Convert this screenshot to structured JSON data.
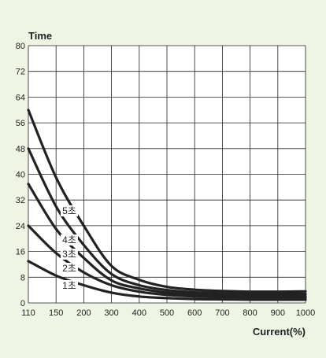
{
  "colors": {
    "background": "#eef5e4",
    "plot_background": "#ffffff",
    "ink": "#222222"
  },
  "chart_data": {
    "type": "line",
    "title": "",
    "xlabel": "Current(%)",
    "ylabel": "Time",
    "grid": true,
    "x_categories": [
      "110",
      "150",
      "200",
      "300",
      "400",
      "500",
      "600",
      "700",
      "800",
      "900",
      "1000"
    ],
    "y_ticks": [
      0,
      8,
      16,
      24,
      32,
      40,
      48,
      56,
      64,
      72,
      80
    ],
    "ylim": [
      0,
      80
    ],
    "series": [
      {
        "name": "1초",
        "points": [
          [
            110,
            13
          ],
          [
            150,
            8.5
          ],
          [
            200,
            5.5
          ],
          [
            300,
            3.2
          ],
          [
            400,
            2
          ],
          [
            500,
            1.5
          ],
          [
            600,
            1.2
          ],
          [
            700,
            1.1
          ],
          [
            800,
            1.0
          ],
          [
            900,
            1.0
          ],
          [
            1000,
            1.0
          ]
        ]
      },
      {
        "name": "2초",
        "points": [
          [
            110,
            24
          ],
          [
            150,
            15.5
          ],
          [
            200,
            9.5
          ],
          [
            300,
            5.5
          ],
          [
            400,
            3.5
          ],
          [
            500,
            2.5
          ],
          [
            600,
            2
          ],
          [
            700,
            1.8
          ],
          [
            800,
            1.6
          ],
          [
            900,
            1.6
          ],
          [
            1000,
            1.6
          ]
        ]
      },
      {
        "name": "3초",
        "points": [
          [
            110,
            37
          ],
          [
            150,
            23
          ],
          [
            200,
            14
          ],
          [
            300,
            7
          ],
          [
            400,
            4.5
          ],
          [
            500,
            3.2
          ],
          [
            600,
            2.6
          ],
          [
            700,
            2.3
          ],
          [
            800,
            2.1
          ],
          [
            900,
            2.1
          ],
          [
            1000,
            2.1
          ]
        ]
      },
      {
        "name": "4초",
        "points": [
          [
            110,
            48
          ],
          [
            150,
            30
          ],
          [
            200,
            18
          ],
          [
            300,
            9
          ],
          [
            400,
            5.5
          ],
          [
            500,
            4
          ],
          [
            600,
            3.3
          ],
          [
            700,
            3.0
          ],
          [
            800,
            2.8
          ],
          [
            900,
            2.8
          ],
          [
            1000,
            2.8
          ]
        ]
      },
      {
        "name": "5초",
        "points": [
          [
            110,
            60
          ],
          [
            150,
            39
          ],
          [
            200,
            24
          ],
          [
            300,
            11.5
          ],
          [
            400,
            7.2
          ],
          [
            500,
            5
          ],
          [
            600,
            4.1
          ],
          [
            700,
            3.7
          ],
          [
            800,
            3.5
          ],
          [
            900,
            3.5
          ],
          [
            1000,
            3.6
          ]
        ]
      }
    ]
  }
}
